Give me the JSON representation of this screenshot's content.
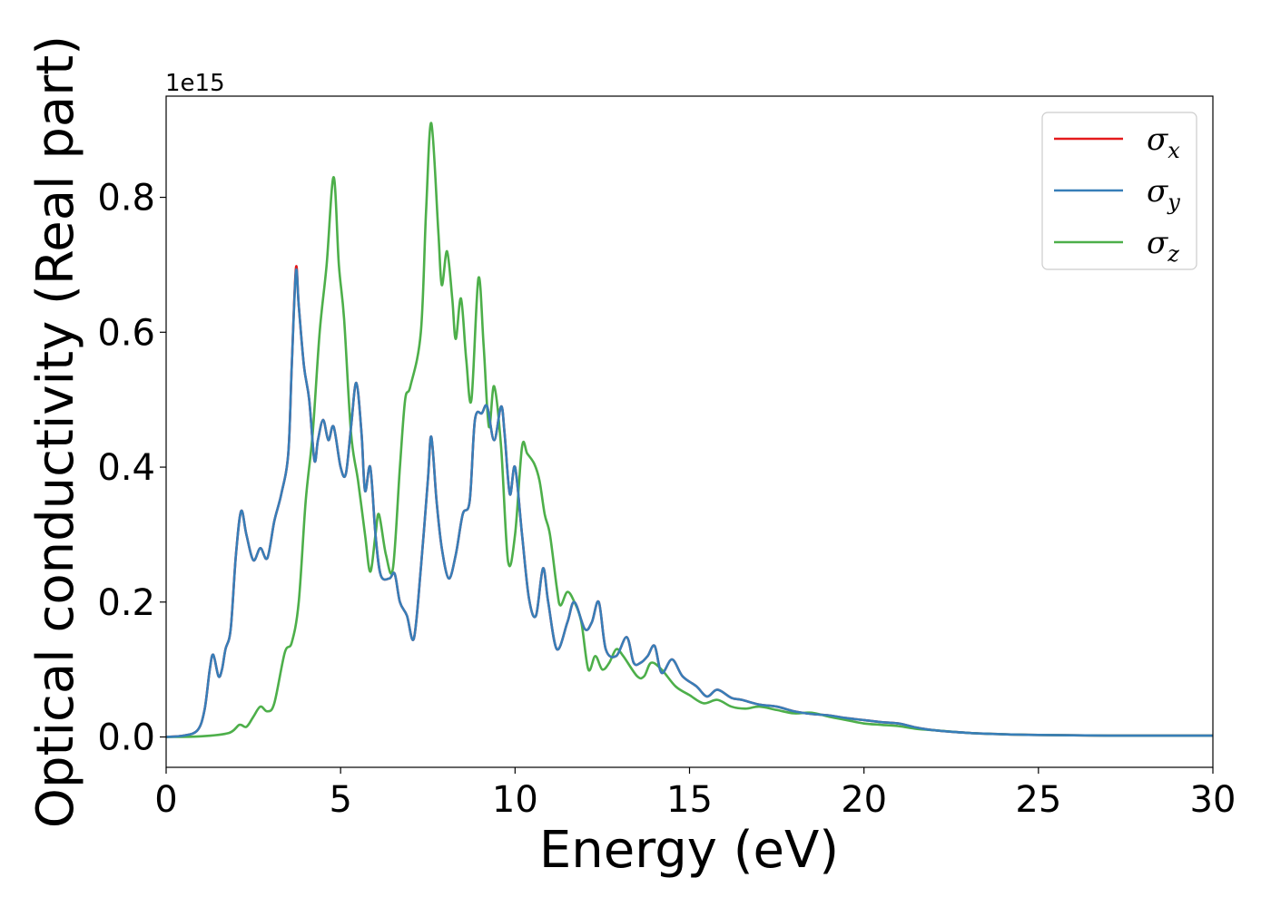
{
  "chart_data": {
    "type": "line",
    "xlabel": "Energy (eV)",
    "ylabel": "Optical conductivity (Real part)",
    "y_offset_label": "1e15",
    "xlim": [
      0,
      30
    ],
    "ylim": [
      -0.045,
      0.95
    ],
    "x_ticks": [
      0,
      5,
      10,
      15,
      20,
      25,
      30
    ],
    "x_tick_labels": [
      "0",
      "5",
      "10",
      "15",
      "20",
      "25",
      "30"
    ],
    "y_ticks": [
      0.0,
      0.2,
      0.4,
      0.6,
      0.8
    ],
    "y_tick_labels": [
      "0.0",
      "0.2",
      "0.4",
      "0.6",
      "0.8"
    ],
    "grid": false,
    "legend_position": "top-right",
    "series": [
      {
        "name": "σx",
        "name_base": "σ",
        "name_sub": "x",
        "color": "#e41a1c",
        "points": [
          [
            0,
            0
          ],
          [
            0.5,
            0.002
          ],
          [
            0.9,
            0.01
          ],
          [
            1.1,
            0.04
          ],
          [
            1.25,
            0.1
          ],
          [
            1.35,
            0.122
          ],
          [
            1.5,
            0.09
          ],
          [
            1.6,
            0.1
          ],
          [
            1.7,
            0.13
          ],
          [
            1.85,
            0.16
          ],
          [
            2.0,
            0.27
          ],
          [
            2.15,
            0.335
          ],
          [
            2.3,
            0.3
          ],
          [
            2.5,
            0.262
          ],
          [
            2.7,
            0.28
          ],
          [
            2.9,
            0.265
          ],
          [
            3.1,
            0.32
          ],
          [
            3.3,
            0.36
          ],
          [
            3.5,
            0.42
          ],
          [
            3.6,
            0.55
          ],
          [
            3.72,
            0.695
          ],
          [
            3.8,
            0.64
          ],
          [
            3.95,
            0.55
          ],
          [
            4.1,
            0.5
          ],
          [
            4.25,
            0.41
          ],
          [
            4.35,
            0.44
          ],
          [
            4.5,
            0.47
          ],
          [
            4.65,
            0.44
          ],
          [
            4.8,
            0.46
          ],
          [
            5.0,
            0.4
          ],
          [
            5.15,
            0.39
          ],
          [
            5.3,
            0.46
          ],
          [
            5.45,
            0.525
          ],
          [
            5.6,
            0.45
          ],
          [
            5.7,
            0.365
          ],
          [
            5.85,
            0.4
          ],
          [
            6.0,
            0.3
          ],
          [
            6.15,
            0.24
          ],
          [
            6.4,
            0.235
          ],
          [
            6.55,
            0.242
          ],
          [
            6.7,
            0.2
          ],
          [
            6.9,
            0.18
          ],
          [
            7.1,
            0.146
          ],
          [
            7.3,
            0.25
          ],
          [
            7.5,
            0.38
          ],
          [
            7.6,
            0.445
          ],
          [
            7.75,
            0.35
          ],
          [
            7.9,
            0.28
          ],
          [
            8.1,
            0.235
          ],
          [
            8.3,
            0.27
          ],
          [
            8.5,
            0.33
          ],
          [
            8.7,
            0.35
          ],
          [
            8.85,
            0.47
          ],
          [
            9.05,
            0.48
          ],
          [
            9.2,
            0.49
          ],
          [
            9.4,
            0.44
          ],
          [
            9.6,
            0.49
          ],
          [
            9.7,
            0.45
          ],
          [
            9.85,
            0.36
          ],
          [
            10.0,
            0.4
          ],
          [
            10.2,
            0.3
          ],
          [
            10.4,
            0.205
          ],
          [
            10.6,
            0.18
          ],
          [
            10.8,
            0.25
          ],
          [
            10.95,
            0.2
          ],
          [
            11.2,
            0.13
          ],
          [
            11.5,
            0.17
          ],
          [
            11.7,
            0.2
          ],
          [
            12.0,
            0.16
          ],
          [
            12.2,
            0.17
          ],
          [
            12.4,
            0.2
          ],
          [
            12.6,
            0.13
          ],
          [
            12.9,
            0.12
          ],
          [
            13.2,
            0.148
          ],
          [
            13.4,
            0.11
          ],
          [
            13.6,
            0.11
          ],
          [
            13.8,
            0.12
          ],
          [
            14.0,
            0.135
          ],
          [
            14.2,
            0.095
          ],
          [
            14.5,
            0.115
          ],
          [
            14.8,
            0.09
          ],
          [
            15.2,
            0.075
          ],
          [
            15.5,
            0.06
          ],
          [
            15.8,
            0.07
          ],
          [
            16.2,
            0.058
          ],
          [
            16.5,
            0.055
          ],
          [
            17.0,
            0.048
          ],
          [
            17.5,
            0.045
          ],
          [
            18.0,
            0.038
          ],
          [
            18.5,
            0.034
          ],
          [
            19.0,
            0.032
          ],
          [
            19.5,
            0.028
          ],
          [
            20.0,
            0.025
          ],
          [
            20.5,
            0.022
          ],
          [
            21.0,
            0.02
          ],
          [
            21.5,
            0.014
          ],
          [
            22.0,
            0.01
          ],
          [
            23.0,
            0.006
          ],
          [
            24.0,
            0.004
          ],
          [
            25.0,
            0.003
          ],
          [
            27.0,
            0.002
          ],
          [
            30.0,
            0.002
          ]
        ]
      },
      {
        "name": "σy",
        "name_base": "σ",
        "name_sub": "y",
        "color": "#377eb8",
        "points": [
          [
            0,
            0
          ],
          [
            0.5,
            0.002
          ],
          [
            0.9,
            0.01
          ],
          [
            1.1,
            0.04
          ],
          [
            1.25,
            0.1
          ],
          [
            1.35,
            0.122
          ],
          [
            1.5,
            0.09
          ],
          [
            1.6,
            0.1
          ],
          [
            1.7,
            0.13
          ],
          [
            1.85,
            0.16
          ],
          [
            2.0,
            0.27
          ],
          [
            2.15,
            0.335
          ],
          [
            2.3,
            0.3
          ],
          [
            2.5,
            0.262
          ],
          [
            2.7,
            0.28
          ],
          [
            2.9,
            0.265
          ],
          [
            3.1,
            0.32
          ],
          [
            3.3,
            0.36
          ],
          [
            3.5,
            0.42
          ],
          [
            3.6,
            0.55
          ],
          [
            3.72,
            0.69
          ],
          [
            3.8,
            0.64
          ],
          [
            3.95,
            0.55
          ],
          [
            4.1,
            0.5
          ],
          [
            4.25,
            0.41
          ],
          [
            4.35,
            0.44
          ],
          [
            4.5,
            0.47
          ],
          [
            4.65,
            0.44
          ],
          [
            4.8,
            0.46
          ],
          [
            5.0,
            0.4
          ],
          [
            5.15,
            0.39
          ],
          [
            5.3,
            0.46
          ],
          [
            5.45,
            0.525
          ],
          [
            5.6,
            0.45
          ],
          [
            5.7,
            0.365
          ],
          [
            5.85,
            0.4
          ],
          [
            6.0,
            0.3
          ],
          [
            6.15,
            0.24
          ],
          [
            6.4,
            0.235
          ],
          [
            6.55,
            0.242
          ],
          [
            6.7,
            0.2
          ],
          [
            6.9,
            0.18
          ],
          [
            7.1,
            0.146
          ],
          [
            7.3,
            0.25
          ],
          [
            7.5,
            0.38
          ],
          [
            7.6,
            0.445
          ],
          [
            7.75,
            0.35
          ],
          [
            7.9,
            0.28
          ],
          [
            8.1,
            0.235
          ],
          [
            8.3,
            0.27
          ],
          [
            8.5,
            0.33
          ],
          [
            8.7,
            0.35
          ],
          [
            8.85,
            0.47
          ],
          [
            9.05,
            0.48
          ],
          [
            9.2,
            0.49
          ],
          [
            9.4,
            0.44
          ],
          [
            9.6,
            0.49
          ],
          [
            9.7,
            0.45
          ],
          [
            9.85,
            0.36
          ],
          [
            10.0,
            0.4
          ],
          [
            10.2,
            0.3
          ],
          [
            10.4,
            0.205
          ],
          [
            10.6,
            0.18
          ],
          [
            10.8,
            0.25
          ],
          [
            10.95,
            0.2
          ],
          [
            11.2,
            0.13
          ],
          [
            11.5,
            0.17
          ],
          [
            11.7,
            0.2
          ],
          [
            12.0,
            0.16
          ],
          [
            12.2,
            0.17
          ],
          [
            12.4,
            0.2
          ],
          [
            12.6,
            0.13
          ],
          [
            12.9,
            0.12
          ],
          [
            13.2,
            0.148
          ],
          [
            13.4,
            0.11
          ],
          [
            13.6,
            0.11
          ],
          [
            13.8,
            0.12
          ],
          [
            14.0,
            0.135
          ],
          [
            14.2,
            0.095
          ],
          [
            14.5,
            0.115
          ],
          [
            14.8,
            0.09
          ],
          [
            15.2,
            0.075
          ],
          [
            15.5,
            0.06
          ],
          [
            15.8,
            0.07
          ],
          [
            16.2,
            0.058
          ],
          [
            16.5,
            0.055
          ],
          [
            17.0,
            0.048
          ],
          [
            17.5,
            0.045
          ],
          [
            18.0,
            0.038
          ],
          [
            18.5,
            0.034
          ],
          [
            19.0,
            0.032
          ],
          [
            19.5,
            0.028
          ],
          [
            20.0,
            0.025
          ],
          [
            20.5,
            0.022
          ],
          [
            21.0,
            0.02
          ],
          [
            21.5,
            0.014
          ],
          [
            22.0,
            0.01
          ],
          [
            23.0,
            0.006
          ],
          [
            24.0,
            0.004
          ],
          [
            25.0,
            0.003
          ],
          [
            27.0,
            0.002
          ],
          [
            30.0,
            0.002
          ]
        ]
      },
      {
        "name": "σz",
        "name_base": "σ",
        "name_sub": "z",
        "color": "#4daf4a",
        "points": [
          [
            0,
            0
          ],
          [
            1.0,
            0.001
          ],
          [
            1.8,
            0.006
          ],
          [
            2.1,
            0.018
          ],
          [
            2.3,
            0.015
          ],
          [
            2.5,
            0.03
          ],
          [
            2.7,
            0.045
          ],
          [
            2.9,
            0.038
          ],
          [
            3.1,
            0.05
          ],
          [
            3.4,
            0.125
          ],
          [
            3.6,
            0.14
          ],
          [
            3.8,
            0.2
          ],
          [
            4.0,
            0.35
          ],
          [
            4.2,
            0.45
          ],
          [
            4.4,
            0.6
          ],
          [
            4.6,
            0.7
          ],
          [
            4.8,
            0.83
          ],
          [
            4.95,
            0.7
          ],
          [
            5.1,
            0.62
          ],
          [
            5.3,
            0.45
          ],
          [
            5.5,
            0.38
          ],
          [
            5.7,
            0.3
          ],
          [
            5.85,
            0.245
          ],
          [
            6.0,
            0.3
          ],
          [
            6.1,
            0.33
          ],
          [
            6.3,
            0.27
          ],
          [
            6.5,
            0.25
          ],
          [
            6.7,
            0.4
          ],
          [
            6.85,
            0.5
          ],
          [
            7.0,
            0.52
          ],
          [
            7.3,
            0.6
          ],
          [
            7.45,
            0.78
          ],
          [
            7.6,
            0.91
          ],
          [
            7.8,
            0.75
          ],
          [
            7.9,
            0.67
          ],
          [
            8.05,
            0.72
          ],
          [
            8.2,
            0.65
          ],
          [
            8.3,
            0.59
          ],
          [
            8.45,
            0.65
          ],
          [
            8.6,
            0.56
          ],
          [
            8.75,
            0.5
          ],
          [
            8.95,
            0.68
          ],
          [
            9.1,
            0.58
          ],
          [
            9.25,
            0.46
          ],
          [
            9.4,
            0.52
          ],
          [
            9.6,
            0.43
          ],
          [
            9.8,
            0.26
          ],
          [
            10.0,
            0.3
          ],
          [
            10.2,
            0.43
          ],
          [
            10.35,
            0.42
          ],
          [
            10.55,
            0.405
          ],
          [
            10.7,
            0.38
          ],
          [
            10.85,
            0.33
          ],
          [
            11.0,
            0.3
          ],
          [
            11.2,
            0.22
          ],
          [
            11.3,
            0.195
          ],
          [
            11.5,
            0.215
          ],
          [
            11.7,
            0.2
          ],
          [
            11.9,
            0.17
          ],
          [
            12.1,
            0.1
          ],
          [
            12.3,
            0.12
          ],
          [
            12.5,
            0.1
          ],
          [
            12.7,
            0.11
          ],
          [
            12.9,
            0.13
          ],
          [
            13.1,
            0.12
          ],
          [
            13.5,
            0.09
          ],
          [
            13.7,
            0.09
          ],
          [
            13.9,
            0.11
          ],
          [
            14.2,
            0.1
          ],
          [
            14.6,
            0.075
          ],
          [
            15.0,
            0.062
          ],
          [
            15.4,
            0.05
          ],
          [
            15.8,
            0.055
          ],
          [
            16.2,
            0.045
          ],
          [
            16.6,
            0.042
          ],
          [
            17.0,
            0.045
          ],
          [
            17.5,
            0.04
          ],
          [
            18.0,
            0.035
          ],
          [
            18.5,
            0.036
          ],
          [
            19.0,
            0.03
          ],
          [
            19.5,
            0.025
          ],
          [
            20.0,
            0.02
          ],
          [
            20.5,
            0.018
          ],
          [
            21.0,
            0.016
          ],
          [
            21.5,
            0.012
          ],
          [
            22.0,
            0.01
          ],
          [
            23.0,
            0.006
          ],
          [
            24.0,
            0.004
          ],
          [
            25.0,
            0.003
          ],
          [
            27.0,
            0.002
          ],
          [
            30.0,
            0.002
          ]
        ]
      }
    ]
  }
}
